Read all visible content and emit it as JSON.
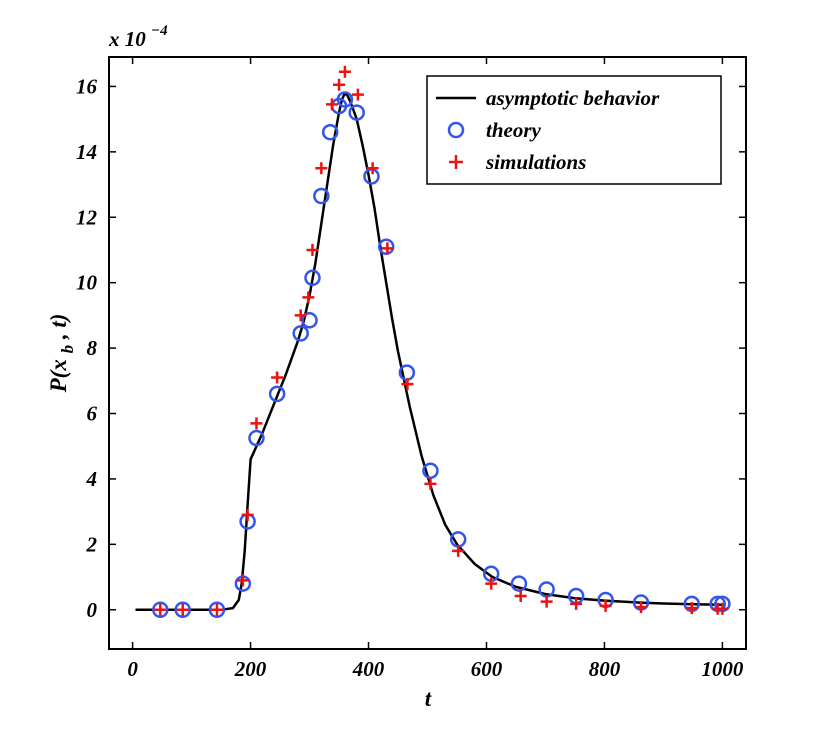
{
  "chart_data": {
    "type": "line",
    "title": "",
    "xlabel": "t",
    "ylabel": "P(x",
    "ylabel_subscript": "b",
    "ylabel_tail": ", t)",
    "y_scale_base": "x 10",
    "y_scale_exponent": "−4",
    "xlim": [
      -40,
      1040
    ],
    "ylim": [
      -1.2,
      16.9
    ],
    "xticks": [
      0,
      200,
      400,
      600,
      800,
      1000
    ],
    "xtick_labels": [
      "0",
      "200",
      "400",
      "600",
      "800",
      "1000"
    ],
    "yticks": [
      0,
      2,
      4,
      6,
      8,
      10,
      12,
      14,
      16
    ],
    "ytick_labels": [
      "0",
      "2",
      "4",
      "6",
      "8",
      "10",
      "12",
      "14",
      "16"
    ],
    "grid": false,
    "legend_position": "top-right",
    "colors": {
      "line": "#000000",
      "theory": "#3355ee",
      "simulations": "#ee1111"
    },
    "series": [
      {
        "name": "asymptotic behavior",
        "kind": "line",
        "x": [
          5,
          100,
          150,
          170,
          180,
          185,
          190,
          195,
          200,
          210,
          220,
          240,
          260,
          280,
          290,
          300,
          310,
          320,
          330,
          340,
          350,
          355,
          360,
          365,
          370,
          380,
          390,
          400,
          410,
          420,
          430,
          440,
          450,
          470,
          490,
          510,
          530,
          550,
          580,
          610,
          650,
          700,
          750,
          800,
          860,
          900,
          950,
          1000
        ],
        "y": [
          0,
          0,
          0,
          0.05,
          0.3,
          0.8,
          1.8,
          3.2,
          4.6,
          5.0,
          5.4,
          6.3,
          7.2,
          8.2,
          8.8,
          9.6,
          10.6,
          11.8,
          13.0,
          14.2,
          15.2,
          15.6,
          15.8,
          15.7,
          15.5,
          15.0,
          14.2,
          13.3,
          12.3,
          11.1,
          10.0,
          8.9,
          7.9,
          6.2,
          4.7,
          3.5,
          2.6,
          2.0,
          1.4,
          1.0,
          0.7,
          0.48,
          0.35,
          0.28,
          0.22,
          0.19,
          0.17,
          0.15
        ]
      },
      {
        "name": "theory",
        "kind": "circle",
        "x": [
          47,
          85,
          143,
          187,
          195,
          210,
          245,
          285,
          300,
          305,
          320,
          335,
          350,
          360,
          380,
          405,
          430,
          465,
          505,
          552,
          608,
          655,
          702,
          752,
          802,
          862,
          948,
          992,
          1000
        ],
        "y": [
          0,
          0,
          0,
          0.8,
          2.7,
          5.25,
          6.6,
          8.45,
          8.85,
          10.15,
          12.65,
          14.6,
          15.4,
          15.6,
          15.2,
          13.25,
          11.1,
          7.25,
          4.25,
          2.15,
          1.1,
          0.8,
          0.62,
          0.42,
          0.3,
          0.22,
          0.18,
          0.18,
          0.18
        ]
      },
      {
        "name": "simulations",
        "kind": "plus",
        "x": [
          47,
          85,
          143,
          187,
          195,
          210,
          245,
          285,
          298,
          305,
          320,
          338,
          350,
          360,
          382,
          407,
          432,
          466,
          505,
          552,
          608,
          658,
          702,
          752,
          802,
          862,
          948,
          992,
          1000
        ],
        "y": [
          0,
          0,
          0,
          0.9,
          2.9,
          5.7,
          7.1,
          9.0,
          9.55,
          11.0,
          13.5,
          15.45,
          16.05,
          16.45,
          15.75,
          13.5,
          11.05,
          6.9,
          3.85,
          1.8,
          0.8,
          0.42,
          0.25,
          0.18,
          0.12,
          0.08,
          0.05,
          0.03,
          0.03
        ]
      }
    ]
  }
}
